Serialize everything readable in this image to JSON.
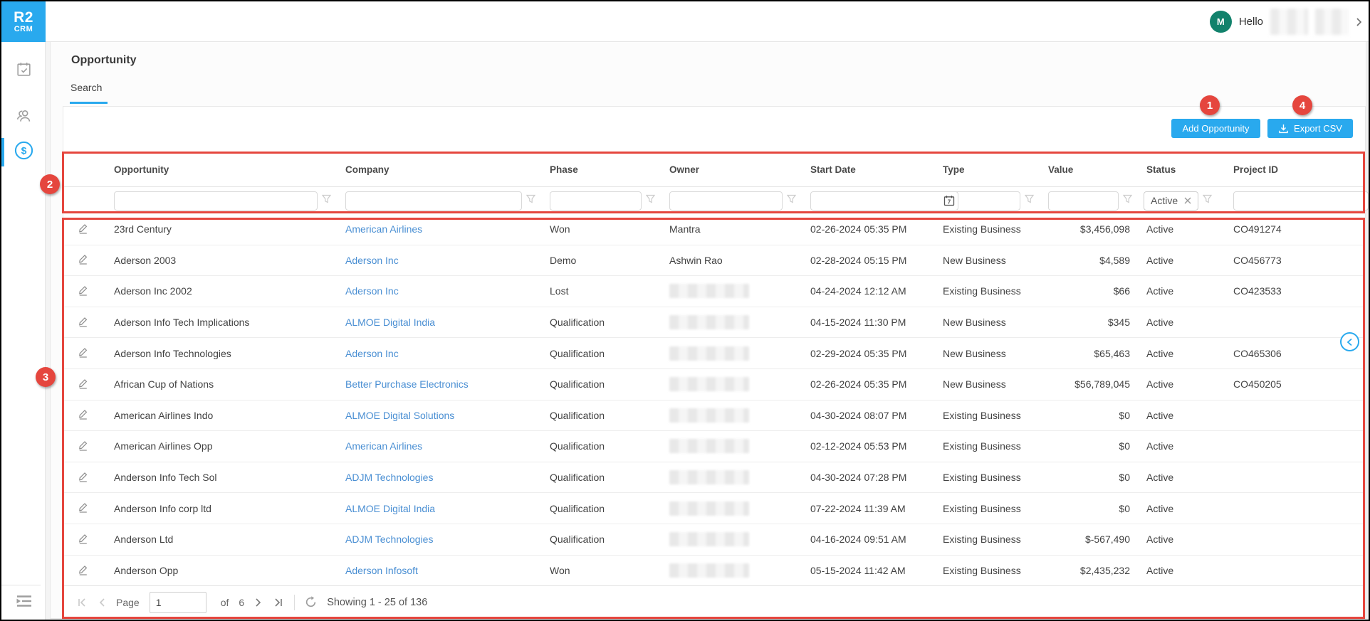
{
  "brand": {
    "line1": "R2",
    "line2": "CRM"
  },
  "topbar": {
    "avatar_initial": "M",
    "greeting": "Hello"
  },
  "page": {
    "title": "Opportunity",
    "tab": "Search"
  },
  "toolbar": {
    "add_label": "Add Opportunity",
    "export_label": "Export CSV"
  },
  "table": {
    "columns": [
      "Opportunity",
      "Company",
      "Phase",
      "Owner",
      "Start Date",
      "Type",
      "Value",
      "Status",
      "Project ID"
    ],
    "filters": {
      "status_value": "Active",
      "calendar_day": "7"
    },
    "rows": [
      {
        "opportunity": "23rd Century",
        "company": "American Airlines",
        "phase": "Won",
        "owner": "Mantra",
        "owner_blurred": false,
        "start_date": "02-26-2024 05:35 PM",
        "type": "Existing Business",
        "value": "$3,456,098",
        "status": "Active",
        "project_id": "CO491274"
      },
      {
        "opportunity": "Aderson 2003",
        "company": "Aderson Inc",
        "phase": "Demo",
        "owner": "Ashwin Rao",
        "owner_blurred": false,
        "start_date": "02-28-2024 05:15 PM",
        "type": "New Business",
        "value": "$4,589",
        "status": "Active",
        "project_id": "CO456773"
      },
      {
        "opportunity": "Aderson Inc 2002",
        "company": "Aderson Inc",
        "phase": "Lost",
        "owner": "",
        "owner_blurred": true,
        "start_date": "04-24-2024 12:12 AM",
        "type": "Existing Business",
        "value": "$66",
        "status": "Active",
        "project_id": "CO423533"
      },
      {
        "opportunity": "Aderson Info Tech Implications",
        "company": "ALMOE Digital India",
        "phase": "Qualification",
        "owner": "",
        "owner_blurred": true,
        "start_date": "04-15-2024 11:30 PM",
        "type": "New Business",
        "value": "$345",
        "status": "Active",
        "project_id": ""
      },
      {
        "opportunity": "Aderson Info Technologies",
        "company": "Aderson Inc",
        "phase": "Qualification",
        "owner": "",
        "owner_blurred": true,
        "start_date": "02-29-2024 05:35 PM",
        "type": "New Business",
        "value": "$65,463",
        "status": "Active",
        "project_id": "CO465306"
      },
      {
        "opportunity": "African Cup of Nations",
        "company": "Better Purchase Electronics",
        "phase": "Qualification",
        "owner": "",
        "owner_blurred": true,
        "start_date": "02-26-2024 05:35 PM",
        "type": "New Business",
        "value": "$56,789,045",
        "status": "Active",
        "project_id": "CO450205"
      },
      {
        "opportunity": "American Airlines Indo",
        "company": "ALMOE Digital Solutions",
        "phase": "Qualification",
        "owner": "",
        "owner_blurred": true,
        "start_date": "04-30-2024 08:07 PM",
        "type": "Existing Business",
        "value": "$0",
        "status": "Active",
        "project_id": ""
      },
      {
        "opportunity": "American Airlines Opp",
        "company": "American Airlines",
        "phase": "Qualification",
        "owner": "",
        "owner_blurred": true,
        "start_date": "02-12-2024 05:53 PM",
        "type": "Existing Business",
        "value": "$0",
        "status": "Active",
        "project_id": ""
      },
      {
        "opportunity": "Anderson Info Tech Sol",
        "company": "ADJM Technologies",
        "phase": "Qualification",
        "owner": "",
        "owner_blurred": true,
        "start_date": "04-30-2024 07:28 PM",
        "type": "Existing Business",
        "value": "$0",
        "status": "Active",
        "project_id": ""
      },
      {
        "opportunity": "Anderson Info corp ltd",
        "company": "ALMOE Digital India",
        "phase": "Qualification",
        "owner": "",
        "owner_blurred": true,
        "start_date": "07-22-2024 11:39 AM",
        "type": "Existing Business",
        "value": "$0",
        "status": "Active",
        "project_id": ""
      },
      {
        "opportunity": "Anderson Ltd",
        "company": "ADJM Technologies",
        "phase": "Qualification",
        "owner": "",
        "owner_blurred": true,
        "start_date": "04-16-2024 09:51 AM",
        "type": "Existing Business",
        "value": "$-567,490",
        "status": "Active",
        "project_id": ""
      },
      {
        "opportunity": "Anderson Opp",
        "company": "Aderson Infosoft",
        "phase": "Won",
        "owner": "",
        "owner_blurred": true,
        "start_date": "05-15-2024 11:42 AM",
        "type": "Existing Business",
        "value": "$2,435,232",
        "status": "Active",
        "project_id": ""
      }
    ]
  },
  "pagination": {
    "page_label": "Page",
    "page_value": "1",
    "of_label": "of",
    "total_pages": "6",
    "showing": "Showing 1 - 25 of 136"
  },
  "annotations": {
    "badges": [
      "1",
      "2",
      "3",
      "4"
    ]
  },
  "colors": {
    "accent": "#29A9EE",
    "annotation_red": "#E5463E",
    "link": "#4a8fd3",
    "avatar": "#12826C"
  }
}
